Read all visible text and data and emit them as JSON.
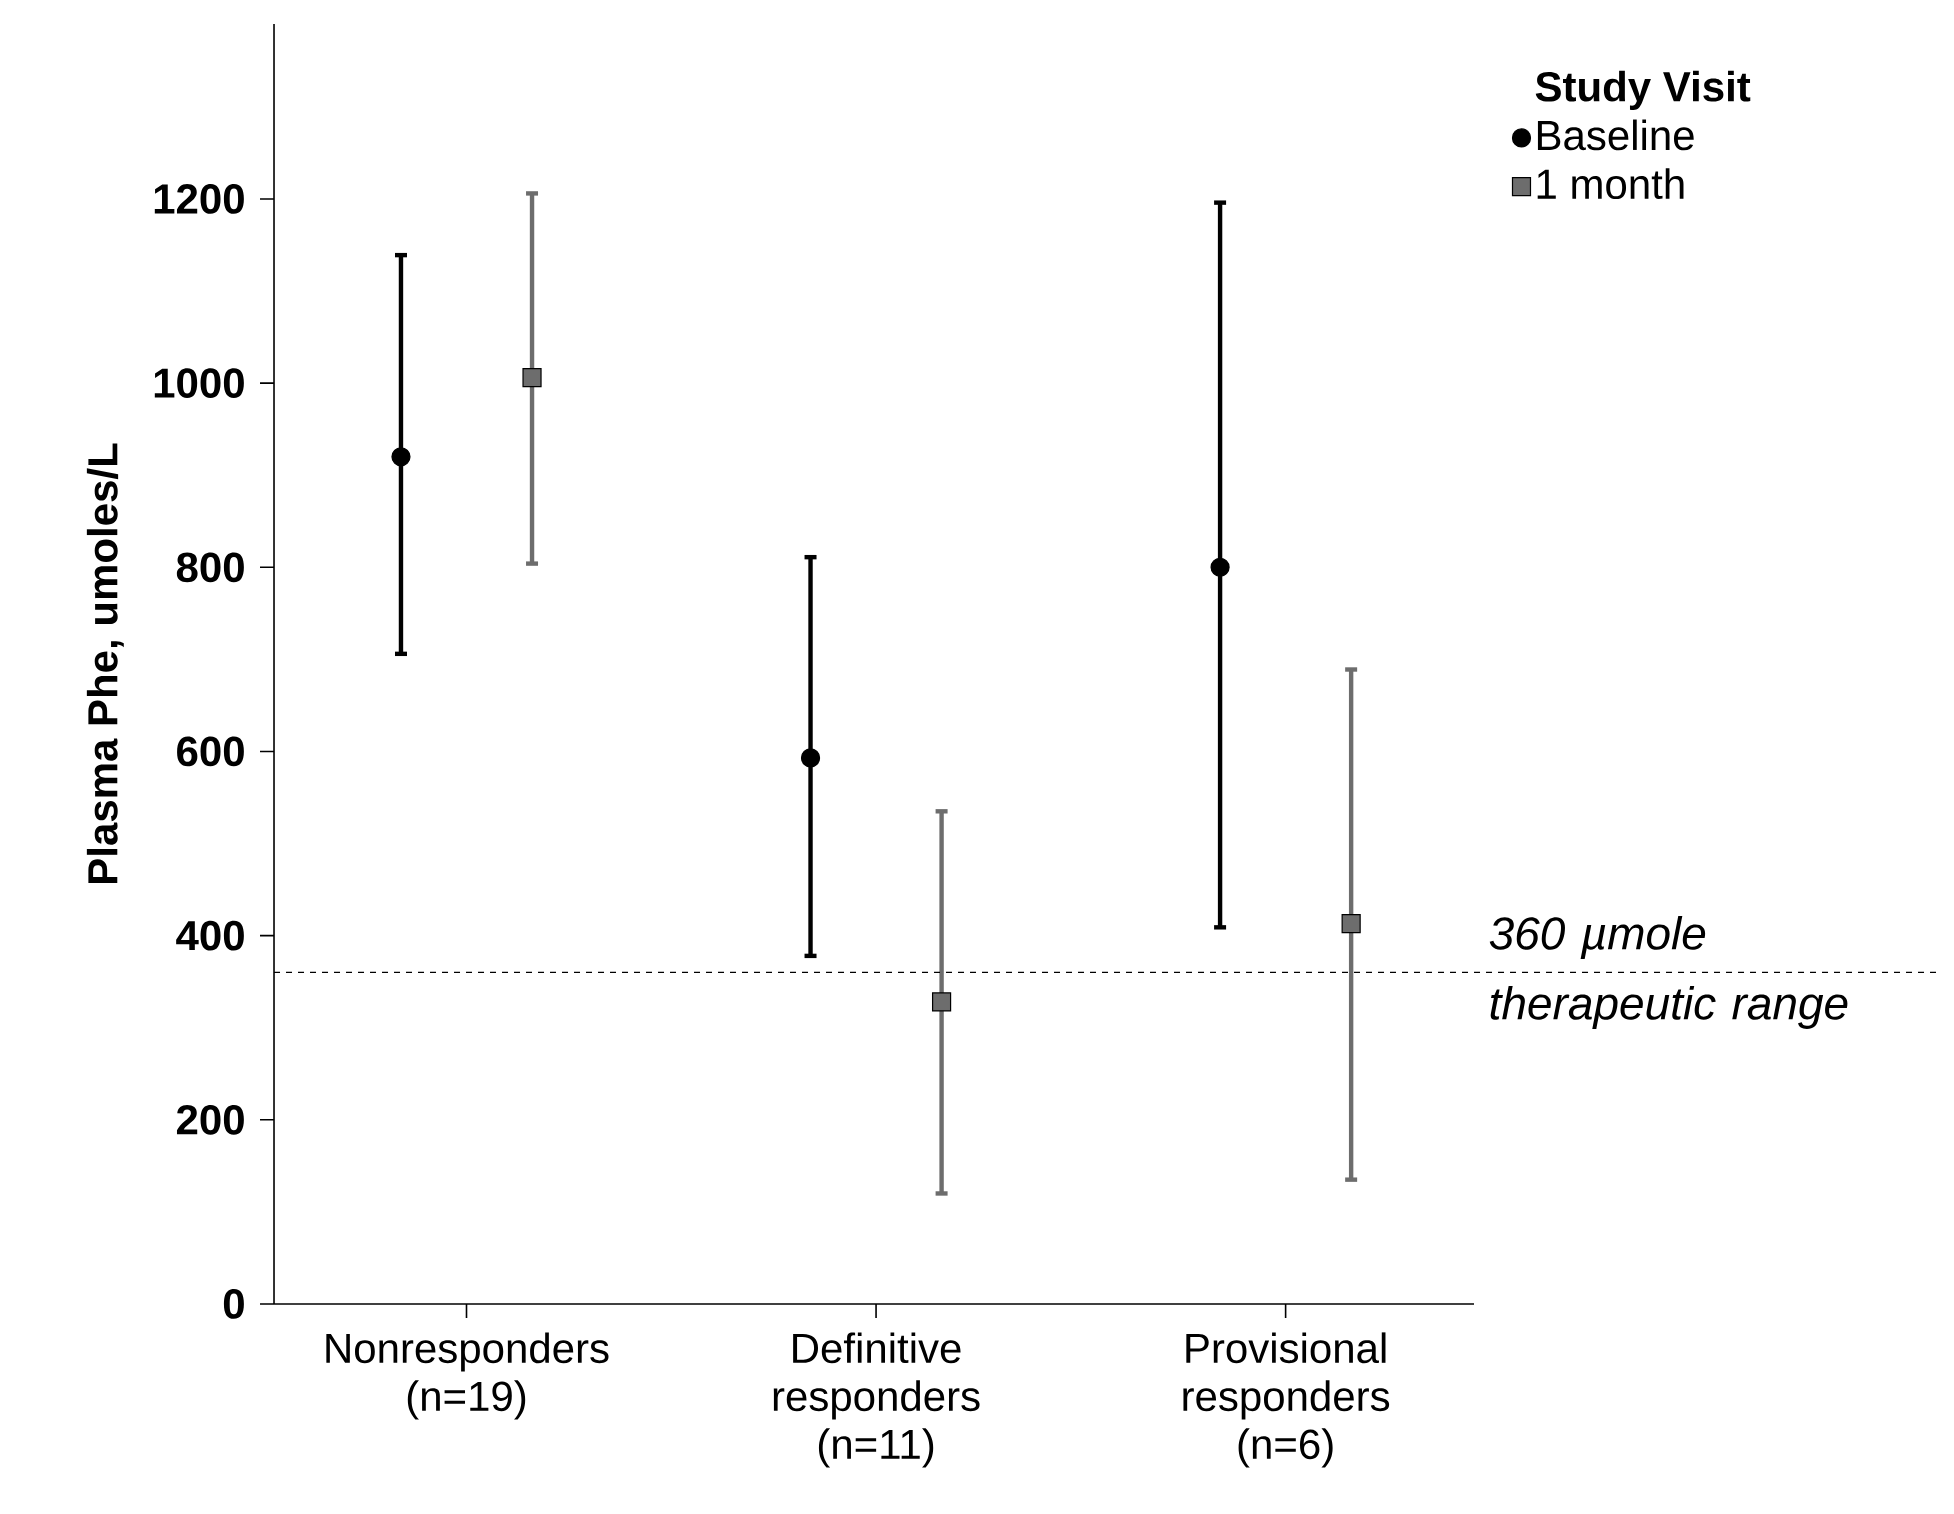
{
  "chart_data": {
    "type": "scatter",
    "ylabel": "Plasma Phe, umoles/L",
    "legend_title": "Study Visit",
    "categories": [
      "Nonresponders (n=19)",
      "Definitive responders (n=11)",
      "Provisional responders (n=6)"
    ],
    "series": [
      {
        "name": "Baseline",
        "color": "#000000",
        "marker": "circle",
        "values": [
          920,
          593,
          800
        ],
        "errors": [
          [
            706,
            1139
          ],
          [
            378,
            811
          ],
          [
            409,
            1196
          ]
        ]
      },
      {
        "name": "1 month",
        "color": "#6d6d6d",
        "marker": "square",
        "values": [
          1006,
          328,
          413
        ],
        "errors": [
          [
            804,
            1206
          ],
          [
            120,
            535
          ],
          [
            135,
            689
          ]
        ]
      }
    ],
    "ylim": [
      0,
      1390
    ],
    "yticks": [
      0,
      200,
      400,
      600,
      800,
      1000,
      1200
    ],
    "ref_lines": [
      {
        "axis": "y",
        "value": 360,
        "label": "360 µmole therapeutic range",
        "line_style": "dashed",
        "color": "#000000"
      }
    ],
    "legend": "top right",
    "grid": false
  }
}
